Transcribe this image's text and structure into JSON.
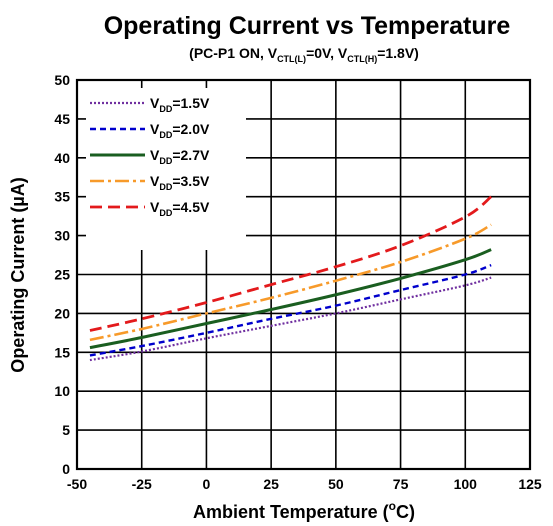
{
  "chart_data": {
    "type": "line",
    "title": "Operating Current vs Temperature",
    "subtitle": {
      "prefix": "(PC-P1 ON, V",
      "sub1": "CTL(L)",
      "mid": "=0V, V",
      "sub2": "CTL(H)",
      "suffix": "=1.8V)"
    },
    "xlabel": {
      "text": "Ambient Temperature  (",
      "sup": "o",
      "unit": "C)"
    },
    "ylabel": "Operating Current  (µA)",
    "xlim": [
      -50,
      125
    ],
    "ylim": [
      0,
      50
    ],
    "xticks": [
      -50,
      -25,
      0,
      25,
      50,
      75,
      100,
      125
    ],
    "yticks": [
      0,
      5,
      10,
      15,
      20,
      25,
      30,
      35,
      40,
      45,
      50
    ],
    "grid": true,
    "legend_position": "top-left",
    "series": [
      {
        "name": "VDD=1.5V",
        "label_main": "V",
        "label_sub": "DD",
        "label_rest": "=1.5V",
        "color": "#7030a0",
        "dash": "2,2",
        "width": 2.2,
        "points": [
          [
            -45,
            14.0
          ],
          [
            -25,
            15.1
          ],
          [
            0,
            16.8
          ],
          [
            25,
            18.4
          ],
          [
            50,
            20.0
          ],
          [
            75,
            21.8
          ],
          [
            100,
            23.6
          ],
          [
            110,
            24.6
          ]
        ]
      },
      {
        "name": "VDD=2.0V",
        "label_main": "V",
        "label_sub": "DD",
        "label_rest": "=2.0V",
        "color": "#0000cc",
        "dash": "6,4",
        "width": 2.4,
        "points": [
          [
            -45,
            14.6
          ],
          [
            -25,
            15.8
          ],
          [
            0,
            17.5
          ],
          [
            25,
            19.3
          ],
          [
            50,
            21.0
          ],
          [
            75,
            23.0
          ],
          [
            100,
            25.0
          ],
          [
            110,
            26.2
          ]
        ]
      },
      {
        "name": "VDD=2.7V",
        "label_main": "V",
        "label_sub": "DD",
        "label_rest": "=2.7V",
        "color": "#1a5e20",
        "dash": "",
        "width": 3,
        "points": [
          [
            -45,
            15.6
          ],
          [
            -25,
            16.9
          ],
          [
            0,
            18.7
          ],
          [
            25,
            20.5
          ],
          [
            50,
            22.4
          ],
          [
            75,
            24.5
          ],
          [
            100,
            26.9
          ],
          [
            110,
            28.2
          ]
        ]
      },
      {
        "name": "VDD=3.5V",
        "label_main": "V",
        "label_sub": "DD",
        "label_rest": "=3.5V",
        "color": "#f79a2a",
        "dash": "14,4,3,4",
        "width": 2.6,
        "points": [
          [
            -45,
            16.6
          ],
          [
            -25,
            18.0
          ],
          [
            0,
            20.0
          ],
          [
            25,
            22.0
          ],
          [
            50,
            24.2
          ],
          [
            75,
            26.6
          ],
          [
            100,
            29.6
          ],
          [
            110,
            31.4
          ]
        ]
      },
      {
        "name": "VDD=4.5V",
        "label_main": "V",
        "label_sub": "DD",
        "label_rest": "=4.5V",
        "color": "#e31a1c",
        "dash": "12,6",
        "width": 2.8,
        "points": [
          [
            -45,
            17.8
          ],
          [
            -25,
            19.3
          ],
          [
            0,
            21.4
          ],
          [
            25,
            23.7
          ],
          [
            50,
            26.0
          ],
          [
            75,
            28.7
          ],
          [
            100,
            32.4
          ],
          [
            110,
            35.0
          ]
        ]
      }
    ]
  }
}
